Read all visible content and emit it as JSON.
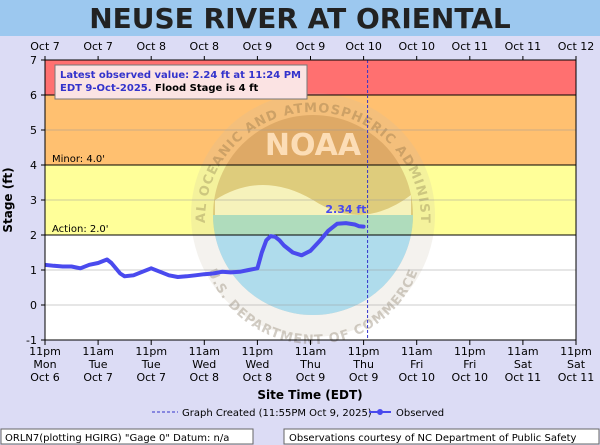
{
  "header": {
    "title": "NEUSE RIVER AT ORIENTAL"
  },
  "top_axis_labels": [
    "Oct 7",
    "Oct 7",
    "Oct 8",
    "Oct 8",
    "Oct 9",
    "Oct 9",
    "Oct 10",
    "Oct 10",
    "Oct 11",
    "Oct 11",
    "Oct 12"
  ],
  "annotation": {
    "line1": "Latest observed value: 2.24 ft at 11:24 PM",
    "line2_blue": "EDT 9-Oct-2025.",
    "line2_black": " Flood Stage is 4 ft"
  },
  "stage_labels": {
    "minor": "Minor: 4.0'",
    "action": "Action: 2.0'"
  },
  "peak_label": "2.34 ft",
  "watermark": {
    "agency": "NOAA",
    "ring_top": "NATIONAL OCEANIC AND ATMOSPHERIC ADMINISTRATION",
    "ring_bottom": "U.S. DEPARTMENT OF COMMERCE"
  },
  "legend": {
    "created": "Graph Created (11:55PM Oct 9, 2025)",
    "observed": "Observed"
  },
  "footer": {
    "left": "ORLN7(plotting HGIRG) \"Gage 0\" Datum: n/a",
    "right": "Observations courtesy of NC Department of Public Safety"
  },
  "colors": {
    "major": "#ff7070",
    "moderate": "#ffc070",
    "minor": "#ffff99",
    "observed": "#4a4aee",
    "created_line": "#3333cc",
    "title_bg": "#9cc8ef"
  },
  "chart_data": {
    "type": "line",
    "title": "",
    "xlabel": "Site Time (EDT)",
    "ylabel": "Stage (ft)",
    "ylim": [
      -1,
      7
    ],
    "yticks": [
      -1,
      0,
      1,
      2,
      3,
      4,
      5,
      6,
      7
    ],
    "x_tick_labels": [
      [
        "11pm",
        "Mon",
        "Oct 6"
      ],
      [
        "11am",
        "Tue",
        "Oct 7"
      ],
      [
        "11pm",
        "Tue",
        "Oct 7"
      ],
      [
        "11am",
        "Wed",
        "Oct 8"
      ],
      [
        "11pm",
        "Wed",
        "Oct 8"
      ],
      [
        "11am",
        "Thu",
        "Oct 9"
      ],
      [
        "11pm",
        "Thu",
        "Oct 9"
      ],
      [
        "11am",
        "Fri",
        "Oct 10"
      ],
      [
        "11pm",
        "Fri",
        "Oct 10"
      ],
      [
        "11am",
        "Sat",
        "Oct 11"
      ],
      [
        "11pm",
        "Sat",
        "Oct 11"
      ]
    ],
    "x_range_hours": [
      0,
      120
    ],
    "bands": [
      {
        "name": "major",
        "from": 6,
        "to": 7
      },
      {
        "name": "moderate",
        "from": 4,
        "to": 6
      },
      {
        "name": "minor",
        "from": 2,
        "to": 4
      }
    ],
    "graph_created_hours": 72.9,
    "series": [
      {
        "name": "Observed",
        "x": [
          0,
          2,
          4,
          6,
          8,
          10,
          12,
          14,
          15,
          17,
          18,
          20,
          22,
          24,
          26,
          28,
          30,
          32,
          34,
          36,
          38,
          40,
          42,
          44,
          46,
          48,
          49,
          50,
          51,
          52,
          53,
          54,
          56,
          58,
          60,
          62,
          64,
          66,
          68,
          70,
          71,
          72
        ],
        "values": [
          1.15,
          1.12,
          1.1,
          1.1,
          1.05,
          1.15,
          1.2,
          1.3,
          1.2,
          0.9,
          0.82,
          0.85,
          0.95,
          1.05,
          0.95,
          0.85,
          0.8,
          0.82,
          0.85,
          0.88,
          0.9,
          0.95,
          0.93,
          0.95,
          1.0,
          1.05,
          1.5,
          1.85,
          1.97,
          1.95,
          1.85,
          1.7,
          1.5,
          1.42,
          1.55,
          1.82,
          2.12,
          2.32,
          2.34,
          2.3,
          2.25,
          2.24
        ]
      }
    ]
  }
}
